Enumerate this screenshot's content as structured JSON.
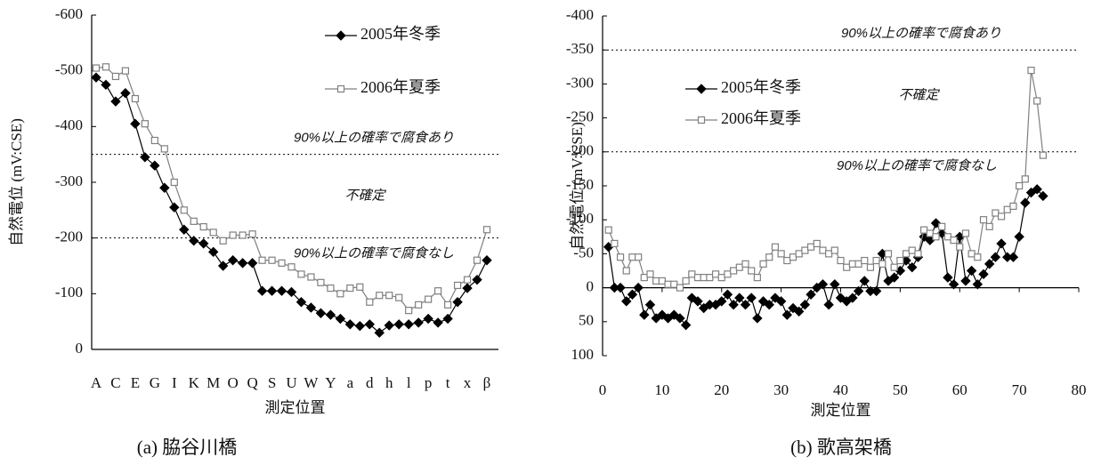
{
  "chart_data": [
    {
      "type": "line",
      "caption": "(a) 脇谷川橋",
      "x_label": "測定位置",
      "y_label": "自然電位 (mV:CSE)",
      "categories": [
        "A",
        null,
        "C",
        null,
        "E",
        null,
        "G",
        null,
        "I",
        null,
        "K",
        null,
        "M",
        null,
        "O",
        null,
        "Q",
        null,
        "S",
        null,
        "U",
        null,
        "W",
        null,
        "Y",
        null,
        "a",
        null,
        "d",
        null,
        "h",
        null,
        "l",
        null,
        "p",
        null,
        "t",
        null,
        "x",
        null,
        "β"
      ],
      "ylim": [
        0,
        -600
      ],
      "yticks": [
        -600,
        -500,
        -400,
        -300,
        -200,
        -100,
        0
      ],
      "ref_lines": [
        -350,
        -200
      ],
      "annotations": [
        "90%以上の確率で腐食あり",
        "不確定",
        "90%以上の確率で腐食なし"
      ],
      "legend": "upper right",
      "series": [
        {
          "name": "2005年冬季",
          "color": "#000000",
          "marker": "diamond",
          "values": [
            -488,
            -475,
            -445,
            -460,
            -405,
            -345,
            -330,
            -290,
            -255,
            -215,
            -195,
            -190,
            -175,
            -150,
            -160,
            -155,
            -155,
            -105,
            -105,
            -105,
            -103,
            -85,
            -75,
            -65,
            -62,
            -55,
            -45,
            -42,
            -45,
            -30,
            -43,
            -45,
            -45,
            -48,
            -55,
            -48,
            -55,
            -85,
            -110,
            -125,
            -160
          ]
        },
        {
          "name": "2006年夏季",
          "color": "#808080",
          "marker": "square",
          "values": [
            -505,
            -507,
            -490,
            -500,
            -450,
            -405,
            -375,
            -360,
            -300,
            -250,
            -230,
            -220,
            -210,
            -195,
            -205,
            -205,
            -207,
            -160,
            -160,
            -155,
            -148,
            -135,
            -130,
            -120,
            -110,
            -100,
            -110,
            -112,
            -85,
            -97,
            -97,
            -93,
            -70,
            -80,
            -90,
            -105,
            -80,
            -115,
            -125,
            -160,
            -215
          ]
        }
      ]
    },
    {
      "type": "line",
      "caption": "(b) 歌高架橋",
      "x_label": "測定位置",
      "y_label": "自然電位 (mV:CSE)",
      "x": [
        1,
        2,
        3,
        4,
        5,
        6,
        7,
        8,
        9,
        10,
        11,
        12,
        13,
        14,
        15,
        16,
        17,
        18,
        19,
        20,
        21,
        22,
        23,
        24,
        25,
        26,
        27,
        28,
        29,
        30,
        31,
        32,
        33,
        34,
        35,
        36,
        37,
        38,
        39,
        40,
        41,
        42,
        43,
        44,
        45,
        46,
        47,
        48,
        49,
        50,
        51,
        52,
        53,
        54,
        55,
        56,
        57,
        58,
        59,
        60,
        61,
        62,
        63,
        64,
        65,
        66,
        67,
        68,
        69,
        70,
        71,
        72,
        73,
        74
      ],
      "xlim": [
        0,
        80
      ],
      "xticks": [
        0,
        10,
        20,
        30,
        40,
        50,
        60,
        70,
        80
      ],
      "ylim": [
        100,
        -400
      ],
      "yticks": [
        -400,
        -350,
        -300,
        -250,
        -200,
        -150,
        -100,
        -50,
        0,
        50,
        100
      ],
      "ref_lines": [
        -350,
        -200
      ],
      "annotations": [
        "90%以上の確率で腐食あり",
        "不確定",
        "90%以上の確率で腐食なし"
      ],
      "legend": "upper left",
      "series": [
        {
          "name": "2005年冬季",
          "color": "#000000",
          "marker": "diamond",
          "values": [
            -60,
            0,
            0,
            20,
            10,
            0,
            40,
            25,
            45,
            40,
            45,
            40,
            45,
            55,
            15,
            20,
            30,
            25,
            25,
            20,
            10,
            25,
            15,
            25,
            15,
            45,
            20,
            25,
            15,
            20,
            40,
            30,
            35,
            25,
            10,
            0,
            -5,
            25,
            -5,
            15,
            20,
            15,
            5,
            -10,
            5,
            5,
            -50,
            -10,
            -15,
            -25,
            -40,
            -30,
            -45,
            -75,
            -70,
            -95,
            -80,
            -15,
            -5,
            -75,
            -10,
            -25,
            -5,
            -20,
            -35,
            -45,
            -65,
            -45,
            -45,
            -75,
            -125,
            -140,
            -145,
            -135
          ]
        },
        {
          "name": "2006年夏季",
          "color": "#808080",
          "marker": "square",
          "values": [
            -85,
            -65,
            -45,
            -25,
            -45,
            -45,
            -15,
            -20,
            -10,
            -10,
            -5,
            -5,
            0,
            -10,
            -20,
            -15,
            -15,
            -15,
            -20,
            -15,
            -20,
            -25,
            -30,
            -35,
            -25,
            -15,
            -35,
            -45,
            -60,
            -50,
            -40,
            -45,
            -50,
            -55,
            -60,
            -65,
            -55,
            -50,
            -55,
            -40,
            -30,
            -35,
            -35,
            -40,
            -30,
            -40,
            -35,
            -50,
            -30,
            -40,
            -50,
            -55,
            -50,
            -85,
            -80,
            -75,
            -90,
            -75,
            -70,
            -60,
            -80,
            -50,
            -45,
            -100,
            -90,
            -110,
            -105,
            -115,
            -120,
            -150,
            -160,
            -320,
            -275,
            -195
          ]
        }
      ]
    }
  ]
}
